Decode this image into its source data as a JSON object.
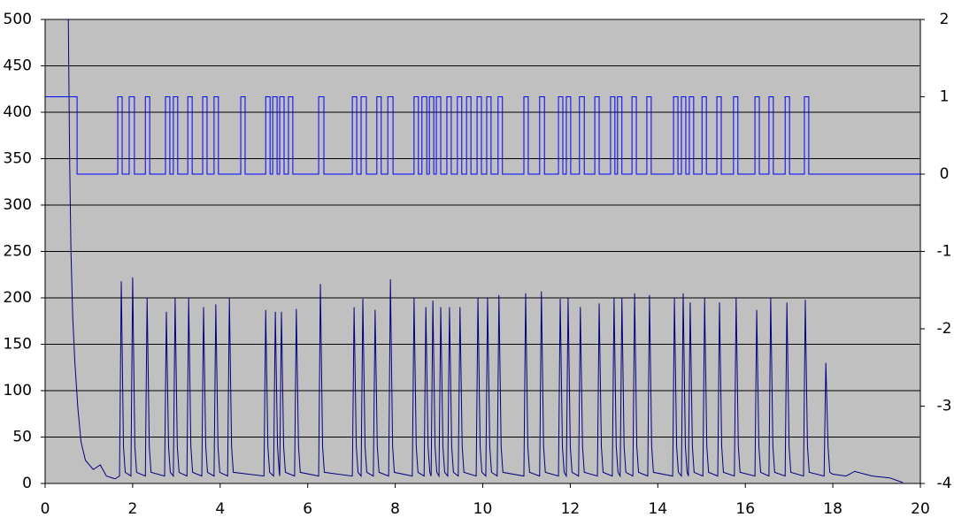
{
  "chart_data": {
    "type": "line",
    "grid": true,
    "background": "#c0c0c0",
    "xlim": [
      0,
      20
    ],
    "xticks": [
      0,
      2,
      4,
      6,
      8,
      10,
      12,
      14,
      16,
      18,
      20
    ],
    "ylim": [
      0,
      500
    ],
    "yticks": [
      0,
      50,
      100,
      150,
      200,
      250,
      300,
      350,
      400,
      450,
      500
    ],
    "y2lim": [
      -4,
      2
    ],
    "y2ticks": [
      -4,
      -3,
      -2,
      -1,
      0,
      1,
      2
    ],
    "series": [
      {
        "color": "#000080",
        "step": false,
        "x": [
          0.53,
          0.56,
          0.59,
          0.63,
          0.68,
          0.75,
          0.82,
          0.92,
          1.1,
          1.26,
          1.4,
          1.6,
          1.7,
          1.74,
          1.79,
          1.83,
          1.96,
          2.0,
          2.05,
          2.09,
          2.29,
          2.33,
          2.38,
          2.42,
          2.73,
          2.77,
          2.82,
          2.86,
          2.93,
          2.97,
          3.02,
          3.06,
          3.24,
          3.28,
          3.33,
          3.37,
          3.58,
          3.62,
          3.67,
          3.71,
          3.86,
          3.9,
          3.95,
          3.99,
          4.17,
          4.21,
          4.26,
          4.3,
          5.0,
          5.04,
          5.09,
          5.13,
          5.22,
          5.26,
          5.31,
          5.35,
          5.36,
          5.4,
          5.45,
          5.49,
          5.7,
          5.74,
          5.79,
          5.83,
          6.25,
          6.29,
          6.34,
          6.38,
          7.02,
          7.06,
          7.11,
          7.15,
          7.22,
          7.26,
          7.31,
          7.35,
          7.5,
          7.54,
          7.59,
          7.63,
          7.85,
          7.89,
          7.94,
          7.98,
          8.39,
          8.43,
          8.48,
          8.52,
          8.66,
          8.7,
          8.75,
          8.79,
          8.82,
          8.86,
          8.91,
          8.95,
          9.0,
          9.04,
          9.09,
          9.13,
          9.2,
          9.24,
          9.29,
          9.33,
          9.44,
          9.48,
          9.53,
          9.57,
          9.85,
          9.89,
          9.94,
          9.98,
          10.07,
          10.11,
          10.16,
          10.2,
          10.33,
          10.37,
          10.42,
          10.46,
          10.94,
          10.98,
          11.03,
          11.07,
          11.3,
          11.34,
          11.39,
          11.43,
          11.73,
          11.77,
          11.82,
          11.86,
          11.91,
          11.95,
          12.0,
          12.04,
          12.19,
          12.23,
          12.28,
          12.32,
          12.62,
          12.66,
          12.71,
          12.75,
          12.96,
          13.0,
          13.05,
          13.09,
          13.14,
          13.18,
          13.23,
          13.27,
          13.43,
          13.47,
          13.52,
          13.56,
          13.77,
          13.81,
          13.86,
          13.9,
          14.34,
          14.38,
          14.43,
          14.47,
          14.54,
          14.58,
          14.63,
          14.67,
          14.7,
          14.74,
          14.79,
          14.83,
          15.03,
          15.07,
          15.12,
          15.16,
          15.37,
          15.41,
          15.46,
          15.5,
          15.75,
          15.79,
          15.84,
          15.88,
          16.22,
          16.26,
          16.31,
          16.35,
          16.54,
          16.58,
          16.63,
          16.67,
          16.91,
          16.95,
          17.0,
          17.04,
          17.33,
          17.37,
          17.42,
          17.46,
          17.8,
          17.84,
          17.89,
          17.93,
          18.0,
          18.3,
          18.5,
          18.9,
          19.3,
          19.6
        ],
        "values": [
          500,
          350,
          250,
          180,
          130,
          80,
          45,
          25,
          15,
          20,
          8,
          5,
          8,
          218,
          40,
          12,
          8,
          222,
          40,
          12,
          8,
          200,
          40,
          12,
          8,
          185,
          40,
          12,
          8,
          200,
          40,
          12,
          8,
          200,
          40,
          12,
          8,
          190,
          40,
          12,
          8,
          193,
          40,
          12,
          8,
          200,
          40,
          12,
          8,
          187,
          40,
          12,
          8,
          185,
          40,
          12,
          8,
          185,
          40,
          12,
          8,
          188,
          40,
          12,
          8,
          215,
          40,
          12,
          8,
          190,
          40,
          12,
          8,
          199,
          40,
          12,
          8,
          187,
          40,
          12,
          8,
          220,
          40,
          12,
          8,
          200,
          40,
          12,
          8,
          190,
          40,
          12,
          8,
          197,
          40,
          12,
          8,
          190,
          40,
          12,
          8,
          190,
          40,
          12,
          8,
          190,
          40,
          12,
          8,
          200,
          40,
          12,
          8,
          200,
          40,
          12,
          8,
          203,
          40,
          12,
          8,
          205,
          40,
          12,
          8,
          207,
          40,
          12,
          8,
          199,
          40,
          12,
          8,
          200,
          40,
          12,
          8,
          190,
          40,
          12,
          8,
          194,
          40,
          12,
          8,
          200,
          40,
          12,
          8,
          200,
          40,
          12,
          8,
          205,
          40,
          12,
          8,
          203,
          40,
          12,
          8,
          200,
          40,
          12,
          8,
          205,
          40,
          12,
          8,
          195,
          40,
          12,
          8,
          200,
          40,
          12,
          8,
          195,
          40,
          12,
          8,
          200,
          40,
          12,
          8,
          187,
          40,
          12,
          8,
          200,
          40,
          12,
          8,
          195,
          40,
          12,
          8,
          198,
          40,
          12,
          8,
          130,
          40,
          12,
          10,
          8,
          13,
          8,
          6,
          1
        ]
      },
      {
        "color": "#0000ff",
        "axis": "y2",
        "step": true,
        "x": [
          0,
          0.73,
          1.66,
          1.76,
          1.92,
          2.04,
          2.29,
          2.39,
          2.75,
          2.85,
          2.93,
          3.03,
          3.26,
          3.36,
          3.6,
          3.7,
          3.86,
          3.96,
          4.47,
          4.57,
          5.04,
          5.14,
          5.2,
          5.3,
          5.36,
          5.46,
          5.56,
          5.66,
          6.25,
          6.37,
          7.02,
          7.12,
          7.22,
          7.34,
          7.58,
          7.68,
          7.83,
          7.95,
          8.43,
          8.53,
          8.61,
          8.72,
          8.78,
          8.88,
          8.94,
          9.04,
          9.18,
          9.28,
          9.42,
          9.52,
          9.63,
          9.73,
          9.87,
          9.97,
          10.09,
          10.19,
          10.35,
          10.45,
          10.94,
          11.04,
          11.3,
          11.41,
          11.73,
          11.83,
          11.91,
          12.01,
          12.21,
          12.32,
          12.56,
          12.66,
          12.92,
          13.02,
          13.08,
          13.18,
          13.41,
          13.51,
          13.75,
          13.85,
          14.36,
          14.46,
          14.54,
          14.64,
          14.72,
          14.82,
          15.01,
          15.11,
          15.35,
          15.45,
          15.73,
          15.83,
          16.22,
          16.32,
          16.54,
          16.64,
          16.91,
          17.01,
          17.35,
          17.45,
          20
        ],
        "values": [
          1,
          0,
          1,
          0,
          1,
          0,
          1,
          0,
          1,
          0,
          1,
          0,
          1,
          0,
          1,
          0,
          1,
          0,
          1,
          0,
          1,
          0,
          1,
          0,
          1,
          0,
          1,
          0,
          1,
          0,
          1,
          0,
          1,
          0,
          1,
          0,
          1,
          0,
          1,
          0,
          1,
          0,
          1,
          0,
          1,
          0,
          1,
          0,
          1,
          0,
          1,
          0,
          1,
          0,
          1,
          0,
          1,
          0,
          1,
          0,
          1,
          0,
          1,
          0,
          1,
          0,
          1,
          0,
          1,
          0,
          1,
          0,
          1,
          0,
          1,
          0,
          1,
          0,
          1,
          0,
          1,
          0,
          1,
          0,
          1,
          0,
          1,
          0,
          1,
          0,
          1,
          0,
          1,
          0,
          1,
          0,
          1,
          0,
          0
        ]
      }
    ]
  }
}
